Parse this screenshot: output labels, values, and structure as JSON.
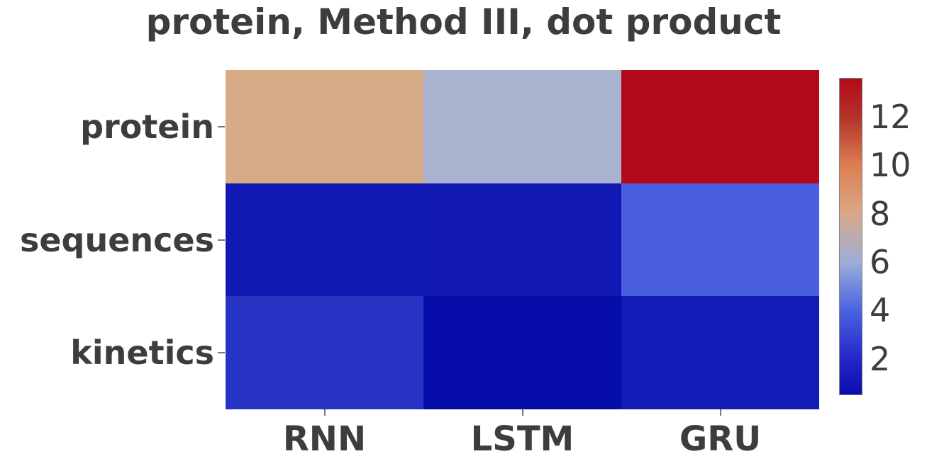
{
  "chart_data": {
    "type": "heatmap",
    "title": "protein, Method III, dot product",
    "rows": [
      "protein",
      "sequences",
      "kinetics"
    ],
    "columns": [
      "RNN",
      "LSTM",
      "GRU"
    ],
    "values": [
      [
        8.1,
        6.4,
        13.6
      ],
      [
        1.3,
        1.3,
        4.0
      ],
      [
        2.2,
        0.5,
        1.4
      ]
    ],
    "vmin": 0.5,
    "vmax": 13.6,
    "colormap": "coolwarm",
    "cell_colors": [
      [
        "#d7ab85",
        "#a9b2ce",
        "#b30a1a"
      ],
      [
        "#1119b3",
        "#1119b2",
        "#4a5fe0"
      ],
      [
        "#2733c3",
        "#060da9",
        "#121bb5"
      ]
    ],
    "colorbar": {
      "ticks": [
        12,
        10,
        8,
        6,
        4,
        2
      ],
      "gradient_stops": [
        {
          "pos": 0,
          "color": "#b30a1a"
        },
        {
          "pos": 12.2,
          "color": "#b43229"
        },
        {
          "pos": 27.5,
          "color": "#dd7e51"
        },
        {
          "pos": 42.7,
          "color": "#d9a887"
        },
        {
          "pos": 58.0,
          "color": "#9daed8"
        },
        {
          "pos": 73.3,
          "color": "#4a63e0"
        },
        {
          "pos": 88.5,
          "color": "#2626c8"
        },
        {
          "pos": 100,
          "color": "#0a0daf"
        }
      ]
    },
    "layout": {
      "grid_on": false,
      "legend": "colorbar-right"
    },
    "text_color": "#3d3d3d",
    "tick_color": "#787878"
  }
}
